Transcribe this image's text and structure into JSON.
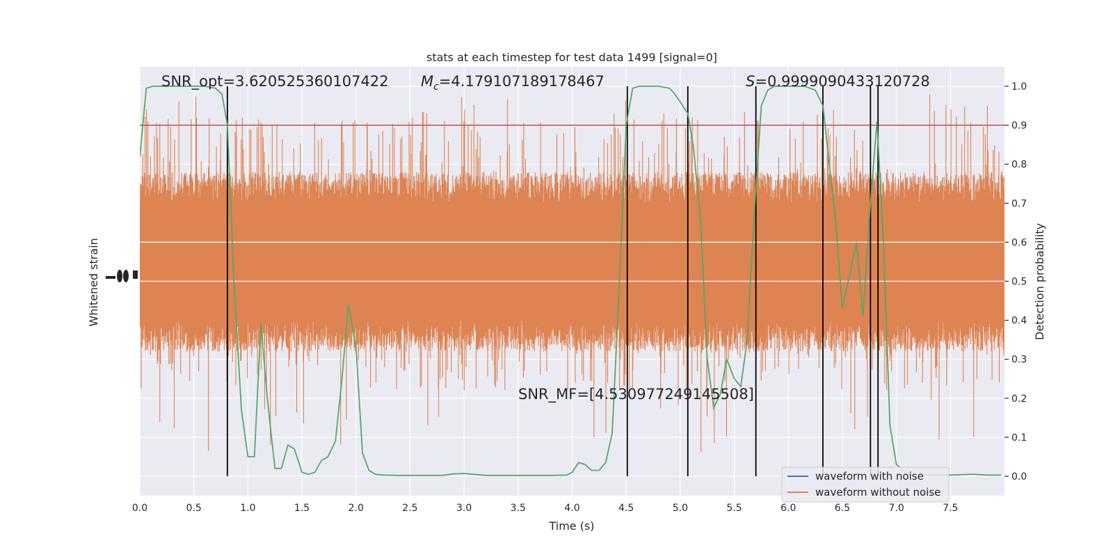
{
  "chart_data": {
    "type": "line",
    "title": "stats at each timestep for test data 1499 [signal=0]",
    "xlabel": "Time (s)",
    "ylabel_left": "Whitened strain",
    "ylabel_right": "Detection probability",
    "xlim": [
      0.0,
      8.0
    ],
    "ylim_right": [
      -0.05,
      1.05
    ],
    "x_ticks": [
      "0.0",
      "0.5",
      "1.0",
      "1.5",
      "2.0",
      "2.5",
      "3.0",
      "3.5",
      "4.0",
      "4.5",
      "5.0",
      "5.5",
      "6.0",
      "6.5",
      "7.0",
      "7.5"
    ],
    "x_tick_values": [
      0.0,
      0.5,
      1.0,
      1.5,
      2.0,
      2.5,
      3.0,
      3.5,
      4.0,
      4.5,
      5.0,
      5.5,
      6.0,
      6.5,
      7.0,
      7.5
    ],
    "y_right_ticks": [
      "0.0",
      "0.1",
      "0.2",
      "0.3",
      "0.4",
      "0.5",
      "0.6",
      "0.7",
      "0.8",
      "0.9",
      "1.0"
    ],
    "y_right_tick_values": [
      0.0,
      0.1,
      0.2,
      0.3,
      0.4,
      0.5,
      0.6,
      0.7,
      0.8,
      0.9,
      1.0
    ],
    "annotations": {
      "snr_opt": "SNR_opt=3.620525360107422",
      "mc_symbol": "M",
      "mc_sub": "c",
      "mc_value": "=4.179107189178467",
      "s_symbol": "S",
      "s_value": "=0.9999090433120728",
      "snr_mf": "SNR_MF=[4.530977249145508]"
    },
    "legend": {
      "placement": "lower-right",
      "entries": [
        {
          "label": "waveform with noise",
          "color": "#4c72b0"
        },
        {
          "label": "waveform without noise",
          "color": "#dd8452"
        }
      ]
    },
    "threshold": {
      "value": 0.9,
      "color": "#c44e52"
    },
    "vertical_lines": [
      0.81,
      4.51,
      5.07,
      5.7,
      6.32,
      6.76,
      6.83
    ],
    "noise_band": {
      "color": "#dd8452",
      "core_low": 0.4,
      "core_high": 0.7,
      "spike_low": 0.04,
      "spike_high": 0.98
    },
    "series": [
      {
        "name": "detection probability",
        "color": "#55a868",
        "x": [
          0.0,
          0.06,
          0.12,
          0.2,
          0.3,
          0.4,
          0.5,
          0.6,
          0.7,
          0.76,
          0.81,
          0.87,
          0.94,
          1.0,
          1.06,
          1.12,
          1.18,
          1.25,
          1.31,
          1.37,
          1.43,
          1.5,
          1.56,
          1.62,
          1.68,
          1.74,
          1.81,
          1.87,
          1.93,
          2.0,
          2.06,
          2.12,
          2.18,
          2.25,
          2.4,
          2.6,
          2.8,
          2.9,
          3.0,
          3.2,
          3.5,
          3.8,
          3.95,
          4.0,
          4.06,
          4.12,
          4.18,
          4.25,
          4.31,
          4.37,
          4.43,
          4.5,
          4.56,
          4.62,
          4.7,
          4.8,
          4.9,
          4.95,
          5.0,
          5.07,
          5.12,
          5.19,
          5.25,
          5.31,
          5.37,
          5.43,
          5.5,
          5.56,
          5.62,
          5.68,
          5.75,
          5.81,
          5.87,
          5.95,
          6.05,
          6.15,
          6.25,
          6.32,
          6.38,
          6.44,
          6.5,
          6.57,
          6.63,
          6.69,
          6.76,
          6.82,
          6.88,
          6.94,
          7.0,
          7.1,
          7.3,
          7.5,
          7.7,
          7.85,
          7.97
        ],
        "y": [
          0.82,
          0.995,
          1.0,
          1.0,
          1.0,
          1.0,
          1.0,
          1.0,
          0.995,
          0.98,
          0.9,
          0.5,
          0.17,
          0.05,
          0.05,
          0.39,
          0.2,
          0.02,
          0.02,
          0.08,
          0.07,
          0.01,
          0.005,
          0.01,
          0.04,
          0.05,
          0.09,
          0.25,
          0.44,
          0.33,
          0.06,
          0.015,
          0.005,
          0.003,
          0.002,
          0.002,
          0.002,
          0.006,
          0.007,
          0.002,
          0.002,
          0.002,
          0.003,
          0.01,
          0.035,
          0.03,
          0.015,
          0.015,
          0.035,
          0.11,
          0.45,
          0.9,
          0.995,
          1.0,
          1.0,
          1.0,
          0.995,
          0.98,
          0.96,
          0.93,
          0.85,
          0.65,
          0.3,
          0.175,
          0.21,
          0.3,
          0.25,
          0.23,
          0.35,
          0.65,
          0.95,
          0.99,
          1.0,
          1.0,
          1.0,
          1.0,
          0.99,
          0.95,
          0.8,
          0.65,
          0.43,
          0.52,
          0.6,
          0.41,
          0.7,
          0.91,
          0.6,
          0.13,
          0.03,
          0.005,
          0.003,
          0.003,
          0.005,
          0.003,
          0.003
        ]
      }
    ]
  }
}
